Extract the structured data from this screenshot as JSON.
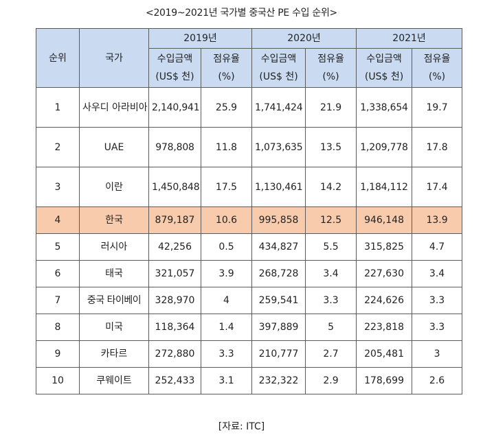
{
  "title": "<2019~2021년 국가별 중국산 PE 수입 순위>",
  "headers": {
    "rank": "순위",
    "country": "국가",
    "years": [
      "2019년",
      "2020년",
      "2021년"
    ],
    "amount_line1": "수입금액",
    "amount_line2": "(US$ 천)",
    "share_line1": "점유율",
    "share_line2": "(%)"
  },
  "rows": [
    {
      "rank": "1",
      "country": "사우디 아라비아",
      "v2019": "2,140,941",
      "s2019": "25.9",
      "v2020": "1,741,424",
      "s2020": "21.9",
      "v2021": "1,338,654",
      "s2021": "19.7"
    },
    {
      "rank": "2",
      "country": "UAE",
      "v2019": "978,808",
      "s2019": "11.8",
      "v2020": "1,073,635",
      "s2020": "13.5",
      "v2021": "1,209,778",
      "s2021": "17.8"
    },
    {
      "rank": "3",
      "country": "이란",
      "v2019": "1,450,848",
      "s2019": "17.5",
      "v2020": "1,130,461",
      "s2020": "14.2",
      "v2021": "1,184,112",
      "s2021": "17.4"
    },
    {
      "rank": "4",
      "country": "한국",
      "v2019": "879,187",
      "s2019": "10.6",
      "v2020": "995,858",
      "s2020": "12.5",
      "v2021": "946,148",
      "s2021": "13.9"
    },
    {
      "rank": "5",
      "country": "러시아",
      "v2019": "42,256",
      "s2019": "0.5",
      "v2020": "434,827",
      "s2020": "5.5",
      "v2021": "315,825",
      "s2021": "4.7"
    },
    {
      "rank": "6",
      "country": "태국",
      "v2019": "321,057",
      "s2019": "3.9",
      "v2020": "268,728",
      "s2020": "3.4",
      "v2021": "227,630",
      "s2021": "3.4"
    },
    {
      "rank": "7",
      "country": "중국 타이베이",
      "v2019": "328,970",
      "s2019": "4",
      "v2020": "259,541",
      "s2020": "3.3",
      "v2021": "224,626",
      "s2021": "3.3"
    },
    {
      "rank": "8",
      "country": "미국",
      "v2019": "118,364",
      "s2019": "1.4",
      "v2020": "397,889",
      "s2020": "5",
      "v2021": "223,818",
      "s2021": "3.3"
    },
    {
      "rank": "9",
      "country": "카타르",
      "v2019": "272,880",
      "s2019": "3.3",
      "v2020": "210,777",
      "s2020": "2.7",
      "v2021": "205,481",
      "s2021": "3"
    },
    {
      "rank": "10",
      "country": "쿠웨이트",
      "v2019": "252,433",
      "s2019": "3.1",
      "v2020": "232,322",
      "s2020": "2.9",
      "v2021": "178,699",
      "s2021": "2.6"
    }
  ],
  "highlight_color": "#f8cbad",
  "header_color": "#c9daf1",
  "source": "[자료: ITC]"
}
